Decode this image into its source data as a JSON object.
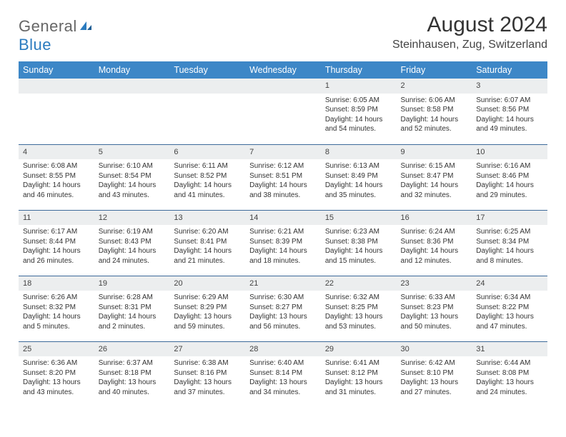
{
  "brand": {
    "part1": "General",
    "part2": "Blue"
  },
  "title": "August 2024",
  "location": "Steinhausen, Zug, Switzerland",
  "colors": {
    "header_bg": "#3d87c7",
    "header_text": "#ffffff",
    "daynum_bg": "#eceeef",
    "row_border": "#3d6a9a",
    "brand_blue": "#2b7bbf"
  },
  "weekdays": [
    "Sunday",
    "Monday",
    "Tuesday",
    "Wednesday",
    "Thursday",
    "Friday",
    "Saturday"
  ],
  "weeks": [
    [
      {
        "n": "",
        "lines": []
      },
      {
        "n": "",
        "lines": []
      },
      {
        "n": "",
        "lines": []
      },
      {
        "n": "",
        "lines": []
      },
      {
        "n": "1",
        "lines": [
          "Sunrise: 6:05 AM",
          "Sunset: 8:59 PM",
          "Daylight: 14 hours and 54 minutes."
        ]
      },
      {
        "n": "2",
        "lines": [
          "Sunrise: 6:06 AM",
          "Sunset: 8:58 PM",
          "Daylight: 14 hours and 52 minutes."
        ]
      },
      {
        "n": "3",
        "lines": [
          "Sunrise: 6:07 AM",
          "Sunset: 8:56 PM",
          "Daylight: 14 hours and 49 minutes."
        ]
      }
    ],
    [
      {
        "n": "4",
        "lines": [
          "Sunrise: 6:08 AM",
          "Sunset: 8:55 PM",
          "Daylight: 14 hours and 46 minutes."
        ]
      },
      {
        "n": "5",
        "lines": [
          "Sunrise: 6:10 AM",
          "Sunset: 8:54 PM",
          "Daylight: 14 hours and 43 minutes."
        ]
      },
      {
        "n": "6",
        "lines": [
          "Sunrise: 6:11 AM",
          "Sunset: 8:52 PM",
          "Daylight: 14 hours and 41 minutes."
        ]
      },
      {
        "n": "7",
        "lines": [
          "Sunrise: 6:12 AM",
          "Sunset: 8:51 PM",
          "Daylight: 14 hours and 38 minutes."
        ]
      },
      {
        "n": "8",
        "lines": [
          "Sunrise: 6:13 AM",
          "Sunset: 8:49 PM",
          "Daylight: 14 hours and 35 minutes."
        ]
      },
      {
        "n": "9",
        "lines": [
          "Sunrise: 6:15 AM",
          "Sunset: 8:47 PM",
          "Daylight: 14 hours and 32 minutes."
        ]
      },
      {
        "n": "10",
        "lines": [
          "Sunrise: 6:16 AM",
          "Sunset: 8:46 PM",
          "Daylight: 14 hours and 29 minutes."
        ]
      }
    ],
    [
      {
        "n": "11",
        "lines": [
          "Sunrise: 6:17 AM",
          "Sunset: 8:44 PM",
          "Daylight: 14 hours and 26 minutes."
        ]
      },
      {
        "n": "12",
        "lines": [
          "Sunrise: 6:19 AM",
          "Sunset: 8:43 PM",
          "Daylight: 14 hours and 24 minutes."
        ]
      },
      {
        "n": "13",
        "lines": [
          "Sunrise: 6:20 AM",
          "Sunset: 8:41 PM",
          "Daylight: 14 hours and 21 minutes."
        ]
      },
      {
        "n": "14",
        "lines": [
          "Sunrise: 6:21 AM",
          "Sunset: 8:39 PM",
          "Daylight: 14 hours and 18 minutes."
        ]
      },
      {
        "n": "15",
        "lines": [
          "Sunrise: 6:23 AM",
          "Sunset: 8:38 PM",
          "Daylight: 14 hours and 15 minutes."
        ]
      },
      {
        "n": "16",
        "lines": [
          "Sunrise: 6:24 AM",
          "Sunset: 8:36 PM",
          "Daylight: 14 hours and 12 minutes."
        ]
      },
      {
        "n": "17",
        "lines": [
          "Sunrise: 6:25 AM",
          "Sunset: 8:34 PM",
          "Daylight: 14 hours and 8 minutes."
        ]
      }
    ],
    [
      {
        "n": "18",
        "lines": [
          "Sunrise: 6:26 AM",
          "Sunset: 8:32 PM",
          "Daylight: 14 hours and 5 minutes."
        ]
      },
      {
        "n": "19",
        "lines": [
          "Sunrise: 6:28 AM",
          "Sunset: 8:31 PM",
          "Daylight: 14 hours and 2 minutes."
        ]
      },
      {
        "n": "20",
        "lines": [
          "Sunrise: 6:29 AM",
          "Sunset: 8:29 PM",
          "Daylight: 13 hours and 59 minutes."
        ]
      },
      {
        "n": "21",
        "lines": [
          "Sunrise: 6:30 AM",
          "Sunset: 8:27 PM",
          "Daylight: 13 hours and 56 minutes."
        ]
      },
      {
        "n": "22",
        "lines": [
          "Sunrise: 6:32 AM",
          "Sunset: 8:25 PM",
          "Daylight: 13 hours and 53 minutes."
        ]
      },
      {
        "n": "23",
        "lines": [
          "Sunrise: 6:33 AM",
          "Sunset: 8:23 PM",
          "Daylight: 13 hours and 50 minutes."
        ]
      },
      {
        "n": "24",
        "lines": [
          "Sunrise: 6:34 AM",
          "Sunset: 8:22 PM",
          "Daylight: 13 hours and 47 minutes."
        ]
      }
    ],
    [
      {
        "n": "25",
        "lines": [
          "Sunrise: 6:36 AM",
          "Sunset: 8:20 PM",
          "Daylight: 13 hours and 43 minutes."
        ]
      },
      {
        "n": "26",
        "lines": [
          "Sunrise: 6:37 AM",
          "Sunset: 8:18 PM",
          "Daylight: 13 hours and 40 minutes."
        ]
      },
      {
        "n": "27",
        "lines": [
          "Sunrise: 6:38 AM",
          "Sunset: 8:16 PM",
          "Daylight: 13 hours and 37 minutes."
        ]
      },
      {
        "n": "28",
        "lines": [
          "Sunrise: 6:40 AM",
          "Sunset: 8:14 PM",
          "Daylight: 13 hours and 34 minutes."
        ]
      },
      {
        "n": "29",
        "lines": [
          "Sunrise: 6:41 AM",
          "Sunset: 8:12 PM",
          "Daylight: 13 hours and 31 minutes."
        ]
      },
      {
        "n": "30",
        "lines": [
          "Sunrise: 6:42 AM",
          "Sunset: 8:10 PM",
          "Daylight: 13 hours and 27 minutes."
        ]
      },
      {
        "n": "31",
        "lines": [
          "Sunrise: 6:44 AM",
          "Sunset: 8:08 PM",
          "Daylight: 13 hours and 24 minutes."
        ]
      }
    ]
  ]
}
